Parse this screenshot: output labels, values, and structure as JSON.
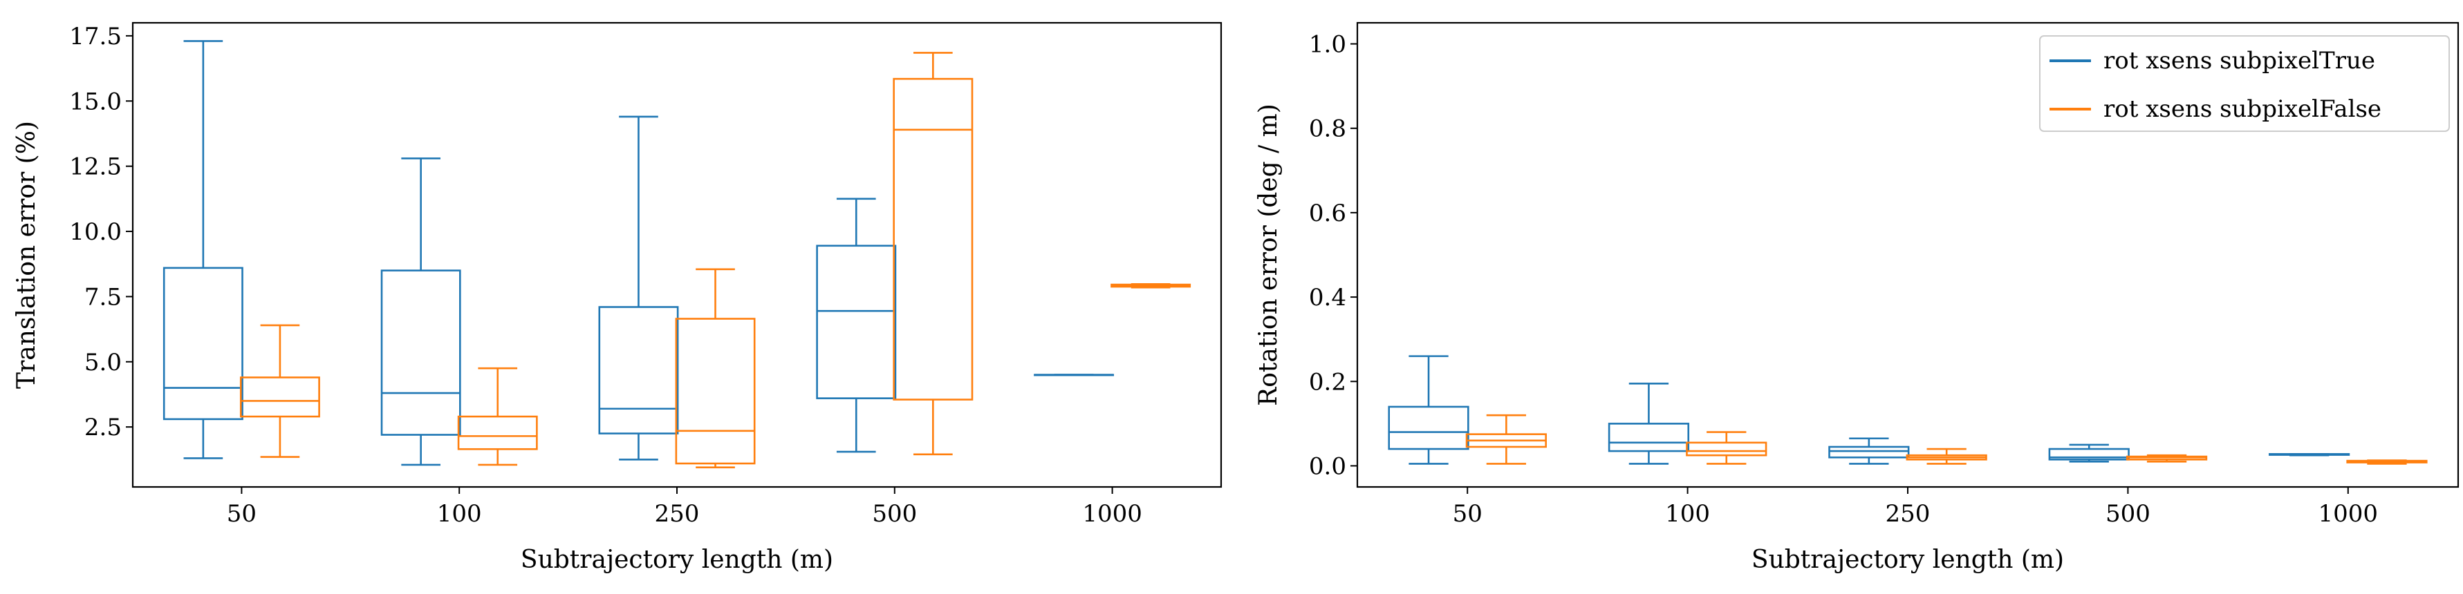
{
  "colors": {
    "series_0": "#1f77b4",
    "series_1": "#ff7f0e"
  },
  "chart_data": [
    {
      "type": "box",
      "xlabel": "Subtrajectory length (m)",
      "ylabel": "Translation error (%)",
      "ylim": [
        0.2,
        18.0
      ],
      "yticks": [
        2.5,
        5.0,
        7.5,
        10.0,
        12.5,
        15.0,
        17.5
      ],
      "ytick_labels": [
        "2.5",
        "5.0",
        "7.5",
        "10.0",
        "12.5",
        "15.0",
        "17.5"
      ],
      "categories": [
        "50",
        "100",
        "250",
        "500",
        "1000"
      ],
      "legend": false,
      "series": [
        {
          "name": "rot xsens subpixelTrue",
          "boxes": [
            {
              "whislo": 1.3,
              "q1": 2.8,
              "med": 4.0,
              "q3": 8.6,
              "whishi": 17.3
            },
            {
              "whislo": 1.05,
              "q1": 2.2,
              "med": 3.8,
              "q3": 8.5,
              "whishi": 12.8
            },
            {
              "whislo": 1.25,
              "q1": 2.25,
              "med": 3.2,
              "q3": 7.1,
              "whishi": 14.4
            },
            {
              "whislo": 1.55,
              "q1": 3.6,
              "med": 6.95,
              "q3": 9.45,
              "whishi": 11.25
            },
            {
              "whislo": 4.5,
              "q1": 4.5,
              "med": 4.5,
              "q3": 4.5,
              "whishi": 4.5
            }
          ]
        },
        {
          "name": "rot xsens subpixelFalse",
          "boxes": [
            {
              "whislo": 1.35,
              "q1": 2.9,
              "med": 3.5,
              "q3": 4.4,
              "whishi": 6.4
            },
            {
              "whislo": 1.05,
              "q1": 1.65,
              "med": 2.15,
              "q3": 2.9,
              "whishi": 4.75
            },
            {
              "whislo": 0.95,
              "q1": 1.1,
              "med": 2.35,
              "q3": 6.65,
              "whishi": 8.55
            },
            {
              "whislo": 1.45,
              "q1": 3.55,
              "med": 13.9,
              "q3": 15.85,
              "whishi": 16.85
            },
            {
              "whislo": 7.85,
              "q1": 7.88,
              "med": 7.92,
              "q3": 7.96,
              "whishi": 7.98
            }
          ]
        }
      ]
    },
    {
      "type": "box",
      "xlabel": "Subtrajectory length (m)",
      "ylabel": "Rotation error (deg / m)",
      "ylim": [
        -0.05,
        1.05
      ],
      "yticks": [
        0.0,
        0.2,
        0.4,
        0.6,
        0.8,
        1.0
      ],
      "ytick_labels": [
        "0.0",
        "0.2",
        "0.4",
        "0.6",
        "0.8",
        "1.0"
      ],
      "categories": [
        "50",
        "100",
        "250",
        "500",
        "1000"
      ],
      "legend": true,
      "legend_position": "top-right",
      "series": [
        {
          "name": "rot xsens subpixelTrue",
          "boxes": [
            {
              "whislo": 0.005,
              "q1": 0.04,
              "med": 0.08,
              "q3": 0.14,
              "whishi": 0.26
            },
            {
              "whislo": 0.005,
              "q1": 0.035,
              "med": 0.055,
              "q3": 0.1,
              "whishi": 0.195
            },
            {
              "whislo": 0.005,
              "q1": 0.02,
              "med": 0.035,
              "q3": 0.045,
              "whishi": 0.065
            },
            {
              "whislo": 0.01,
              "q1": 0.015,
              "med": 0.02,
              "q3": 0.04,
              "whishi": 0.05
            },
            {
              "whislo": 0.025,
              "q1": 0.026,
              "med": 0.027,
              "q3": 0.028,
              "whishi": 0.028
            }
          ]
        },
        {
          "name": "rot xsens subpixelFalse",
          "boxes": [
            {
              "whislo": 0.005,
              "q1": 0.045,
              "med": 0.06,
              "q3": 0.075,
              "whishi": 0.12
            },
            {
              "whislo": 0.005,
              "q1": 0.025,
              "med": 0.035,
              "q3": 0.055,
              "whishi": 0.08
            },
            {
              "whislo": 0.005,
              "q1": 0.015,
              "med": 0.02,
              "q3": 0.025,
              "whishi": 0.04
            },
            {
              "whislo": 0.01,
              "q1": 0.015,
              "med": 0.02,
              "q3": 0.022,
              "whishi": 0.025
            },
            {
              "whislo": 0.005,
              "q1": 0.008,
              "med": 0.01,
              "q3": 0.012,
              "whishi": 0.013
            }
          ]
        }
      ]
    }
  ]
}
